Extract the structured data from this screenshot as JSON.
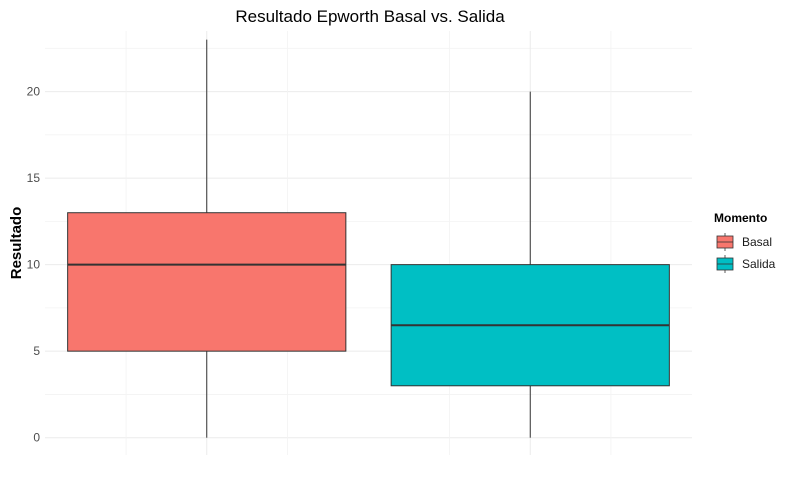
{
  "chart_data": {
    "type": "boxplot",
    "title": "Resultado Epworth Basal vs. Salida",
    "xlabel": "",
    "ylabel": "Resultado",
    "ylim": [
      -1,
      23.5
    ],
    "yticks": [
      0,
      5,
      10,
      15,
      20
    ],
    "grid": true,
    "legend": {
      "title": "Momento",
      "position": "right",
      "entries": [
        "Basal",
        "Salida"
      ]
    },
    "series": [
      {
        "name": "Basal",
        "color": "#F8766D",
        "min": 0,
        "q1": 5,
        "median": 10,
        "q3": 13,
        "max": 23
      },
      {
        "name": "Salida",
        "color": "#00BFC4",
        "min": 0,
        "q1": 3,
        "median": 6.5,
        "q3": 10,
        "max": 20
      }
    ]
  }
}
